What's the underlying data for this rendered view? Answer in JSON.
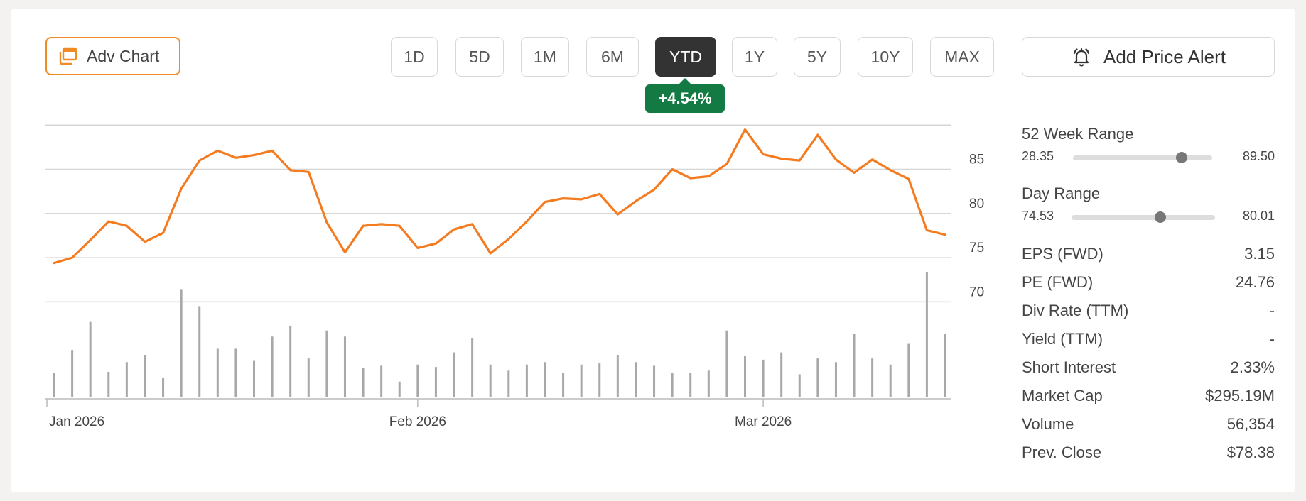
{
  "toolbar": {
    "adv_chart_label": "Adv Chart",
    "ranges": [
      "1D",
      "5D",
      "1M",
      "6M",
      "YTD",
      "1Y",
      "5Y",
      "10Y",
      "MAX"
    ],
    "active_range": "YTD",
    "change_badge": "+4.54%",
    "add_alert_label": "Add Price Alert"
  },
  "colors": {
    "accent": "#f47b20",
    "positive": "#137a43",
    "volume": "#a8a8a8",
    "grid": "#d6d6d6"
  },
  "chart_data": {
    "type": "line",
    "price_series": [
      74.4,
      75.0,
      77.0,
      79.1,
      78.6,
      76.8,
      77.8,
      82.8,
      86.0,
      87.1,
      86.3,
      86.6,
      87.1,
      84.9,
      84.7,
      79.0,
      75.6,
      78.6,
      78.8,
      78.6,
      76.1,
      76.6,
      78.2,
      78.8,
      75.5,
      77.1,
      79.1,
      81.3,
      81.7,
      81.6,
      82.2,
      79.9,
      81.4,
      82.7,
      85.0,
      84.0,
      84.2,
      85.6,
      89.5,
      86.7,
      86.2,
      86.0,
      88.9,
      86.1,
      84.6,
      86.1,
      84.9,
      83.9,
      78.1,
      77.6
    ],
    "volume_series": [
      40,
      78,
      124,
      42,
      58,
      70,
      32,
      178,
      150,
      80,
      80,
      60,
      100,
      118,
      64,
      110,
      100,
      48,
      52,
      26,
      54,
      50,
      74,
      98,
      54,
      44,
      54,
      58,
      40,
      54,
      56,
      70,
      58,
      52,
      40,
      40,
      44,
      110,
      68,
      62,
      74,
      38,
      64,
      58,
      104,
      64,
      54,
      88,
      206,
      104
    ],
    "x_tick_labels": [
      "Jan 2026",
      "Feb 2026",
      "Mar 2026"
    ],
    "x_tick_index": [
      0,
      20,
      39
    ],
    "y_ticks": [
      70,
      75,
      80,
      85
    ],
    "ylim": [
      67.7,
      89.7
    ]
  },
  "stats": {
    "week52": {
      "label": "52 Week Range",
      "low": "28.35",
      "high": "89.50",
      "position": 0.78
    },
    "day": {
      "label": "Day Range",
      "low": "74.53",
      "high": "80.01",
      "position": 0.62
    },
    "rows": [
      {
        "label": "EPS (FWD)",
        "value": "3.15"
      },
      {
        "label": "PE (FWD)",
        "value": "24.76"
      },
      {
        "label": "Div Rate (TTM)",
        "value": "-"
      },
      {
        "label": "Yield (TTM)",
        "value": "-"
      },
      {
        "label": "Short Interest",
        "value": "2.33%"
      },
      {
        "label": "Market Cap",
        "value": "$295.19M"
      },
      {
        "label": "Volume",
        "value": "56,354"
      },
      {
        "label": "Prev. Close",
        "value": "$78.38"
      }
    ]
  }
}
